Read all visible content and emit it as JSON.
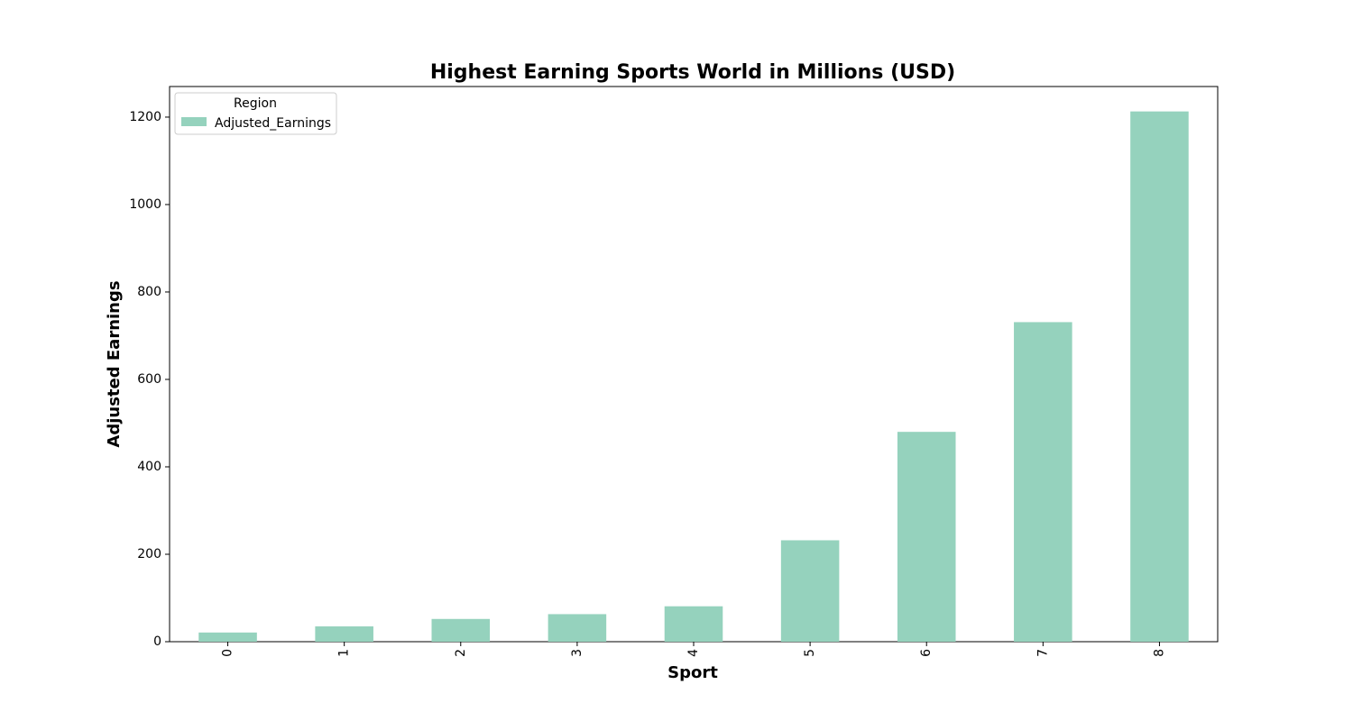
{
  "chart_data": {
    "type": "bar",
    "title": "Highest Earning Sports World in Millions (USD)",
    "xlabel": "Sport",
    "ylabel": "Adjusted Earnings",
    "categories": [
      "0",
      "1",
      "2",
      "3",
      "4",
      "5",
      "6",
      "7",
      "8"
    ],
    "series": [
      {
        "name": "Adjusted_Earnings",
        "color": "#95d2bd",
        "values": [
          21,
          35,
          52,
          63,
          81,
          232,
          480,
          731,
          1213
        ]
      }
    ],
    "ylim": [
      0,
      1270
    ],
    "yticks": [
      0,
      200,
      400,
      600,
      800,
      1000,
      1200
    ],
    "grid": false,
    "legend": {
      "title": "Region",
      "placement": "top-left"
    }
  }
}
